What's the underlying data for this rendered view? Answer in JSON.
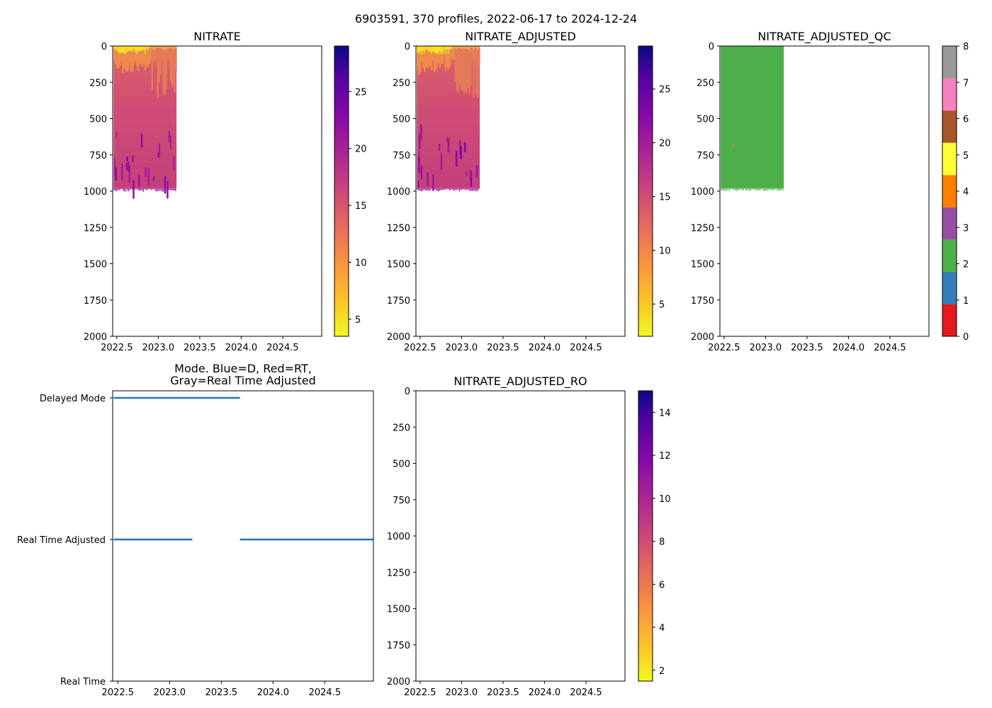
{
  "figure": {
    "suptitle": "6903591, 370 profiles, 2022-06-17 to 2024-12-24"
  },
  "chart_data": [
    {
      "id": "nitrate",
      "type": "heatmap",
      "title": "NITRATE",
      "xlim": [
        2022.45,
        2024.97
      ],
      "ylim": [
        2000,
        0
      ],
      "xticks": [
        "2022.5",
        "2023.0",
        "2023.5",
        "2024.0",
        "2024.5"
      ],
      "yticks": [
        "0",
        "250",
        "500",
        "750",
        "1000",
        "1250",
        "1500",
        "1750",
        "2000"
      ],
      "data_extent": {
        "x": [
          2022.46,
          2023.22
        ],
        "y": [
          0,
          980
        ]
      },
      "colormap": "plasma_r",
      "colorbar": {
        "range": [
          3.5,
          29
        ],
        "ticks": [
          "5",
          "10",
          "15",
          "20",
          "25"
        ]
      }
    },
    {
      "id": "nitrate_adjusted",
      "type": "heatmap",
      "title": "NITRATE_ADJUSTED",
      "xlim": [
        2022.45,
        2024.97
      ],
      "ylim": [
        2000,
        0
      ],
      "xticks": [
        "2022.5",
        "2023.0",
        "2023.5",
        "2024.0",
        "2024.5"
      ],
      "yticks": [
        "0",
        "250",
        "500",
        "750",
        "1000",
        "1250",
        "1500",
        "1750",
        "2000"
      ],
      "data_extent": {
        "x": [
          2022.46,
          2023.22
        ],
        "y": [
          0,
          980
        ]
      },
      "colormap": "plasma_r",
      "colorbar": {
        "range": [
          2,
          29
        ],
        "ticks": [
          "5",
          "10",
          "15",
          "20",
          "25"
        ]
      }
    },
    {
      "id": "nitrate_adjusted_qc",
      "type": "heatmap",
      "title": "NITRATE_ADJUSTED_QC",
      "xlim": [
        2022.45,
        2024.97
      ],
      "ylim": [
        2000,
        0
      ],
      "xticks": [
        "2022.5",
        "2023.0",
        "2023.5",
        "2024.0",
        "2024.5"
      ],
      "yticks": [
        "0",
        "250",
        "500",
        "750",
        "1000",
        "1250",
        "1500",
        "1750",
        "2000"
      ],
      "data_extent": {
        "x": [
          2022.46,
          2023.22
        ],
        "y": [
          0,
          980
        ]
      },
      "dominant_flag": 2,
      "colorbar": {
        "range": [
          0,
          8
        ],
        "ticks": [
          "0",
          "1",
          "2",
          "3",
          "4",
          "5",
          "6",
          "7",
          "8"
        ],
        "colors": [
          "#e41a1c",
          "#377eb8",
          "#4daf4a",
          "#984ea3",
          "#ff7f00",
          "#ffff33",
          "#a65628",
          "#f781bf",
          "#999999"
        ]
      }
    },
    {
      "id": "mode",
      "type": "line",
      "title": "Mode. Blue=D, Red=RT,",
      "title_line2": "Gray=Real Time Adjusted",
      "xlim": [
        2022.45,
        2024.97
      ],
      "xticks": [
        "2022.5",
        "2023.0",
        "2023.5",
        "2024.0",
        "2024.5"
      ],
      "yticks": [
        "Delayed Mode",
        "Real Time Adjusted",
        "Real Time"
      ],
      "ylim": [
        0,
        2
      ],
      "series": [
        {
          "name": "Delayed Mode",
          "level": 2,
          "segments": [
            [
              2022.46,
              2023.68
            ]
          ],
          "color": "#1f77b4"
        },
        {
          "name": "Real Time Adjusted",
          "level": 1,
          "segments": [
            [
              2022.46,
              2023.22
            ],
            [
              2023.68,
              2024.97
            ]
          ],
          "color": "#1f77b4"
        }
      ]
    },
    {
      "id": "nitrate_adjusted_ro",
      "type": "heatmap",
      "title": "NITRATE_ADJUSTED_RO",
      "xlim": [
        2022.45,
        2024.97
      ],
      "ylim": [
        2000,
        0
      ],
      "xticks": [
        "2022.5",
        "2023.0",
        "2023.5",
        "2024.0",
        "2024.5"
      ],
      "yticks": [
        "0",
        "250",
        "500",
        "750",
        "1000",
        "1250",
        "1500",
        "1750",
        "2000"
      ],
      "empty": true,
      "colormap": "plasma_r",
      "colorbar": {
        "range": [
          1.5,
          15
        ],
        "ticks": [
          "2",
          "4",
          "6",
          "8",
          "10",
          "12",
          "14"
        ]
      }
    }
  ]
}
